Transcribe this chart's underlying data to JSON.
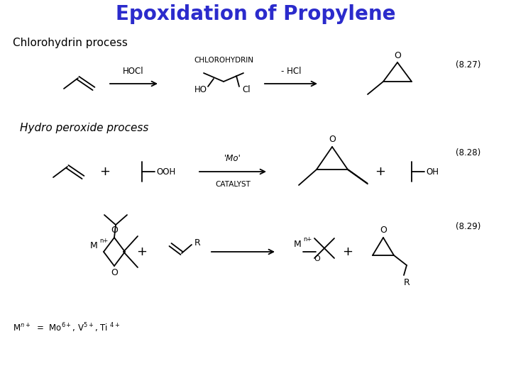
{
  "title": "Epoxidation of Propylene",
  "title_color": "#2B2BCC",
  "title_fontsize": 20,
  "title_fontweight": "bold",
  "bg_color": "#ffffff",
  "section1_label": "Chlorohydrin process",
  "section2_label": "Hydro peroxide process",
  "eq_num1": "(8.27)",
  "eq_num2": "(8.28)",
  "eq_num3": "(8.29)",
  "label_chlorohydrin": "CHLOROHYDRIN",
  "label_catalyst": "CATALYST",
  "label_hocl": "HOCl",
  "label_mhcl": "- HCl",
  "label_mo": "'Mo'",
  "line_color": "#000000",
  "text_color": "#000000"
}
